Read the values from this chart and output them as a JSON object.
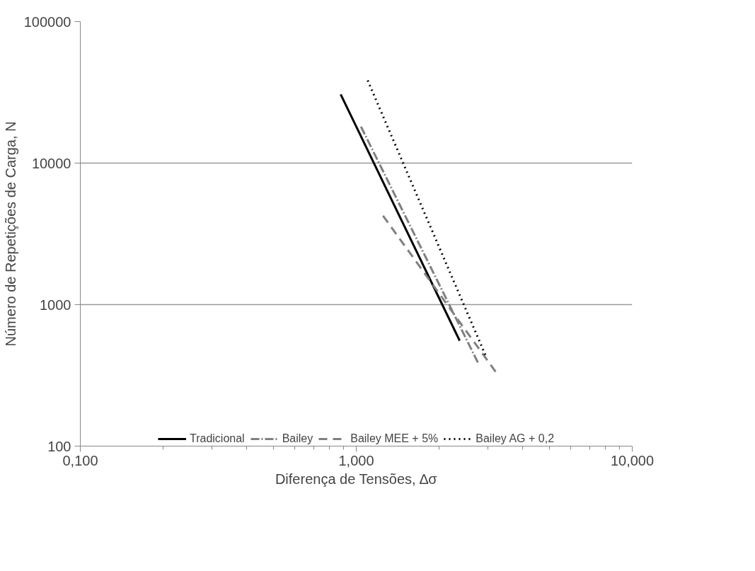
{
  "chart_data": {
    "type": "line",
    "xlabel": "Diferença de Tensões, ∆σ",
    "ylabel": "Número de Repetições de Carga, N",
    "log": "xy",
    "grid": "y",
    "legend": "bottom",
    "xlim": [
      0.1,
      10
    ],
    "xticks": [
      {
        "value": 0.1,
        "label": "0,100"
      },
      {
        "value": 1,
        "label": "1,000"
      },
      {
        "value": 10,
        "label": "10,000"
      }
    ],
    "ylim": [
      100,
      100000
    ],
    "yticks": [
      100,
      1000,
      10000,
      100000
    ],
    "series": [
      {
        "name": "Tradicional",
        "color": "#000000",
        "line_style": "solid",
        "x": [
          0.878,
          2.37
        ],
        "values": [
          30600,
          556
        ]
      },
      {
        "name": "Bailey",
        "color": "#808080",
        "line_style": "dashdot",
        "x": [
          1.04,
          2.76
        ],
        "values": [
          18100,
          389
        ]
      },
      {
        "name": "Bailey MEE + 5%",
        "color": "#808080",
        "line_style": "dashed",
        "x": [
          1.25,
          3.22
        ],
        "values": [
          4250,
          329
        ]
      },
      {
        "name": "Bailey AG + 0,2",
        "color": "#000000",
        "line_style": "dotted",
        "x": [
          1.1,
          2.94
        ],
        "values": [
          38400,
          438
        ]
      }
    ]
  }
}
